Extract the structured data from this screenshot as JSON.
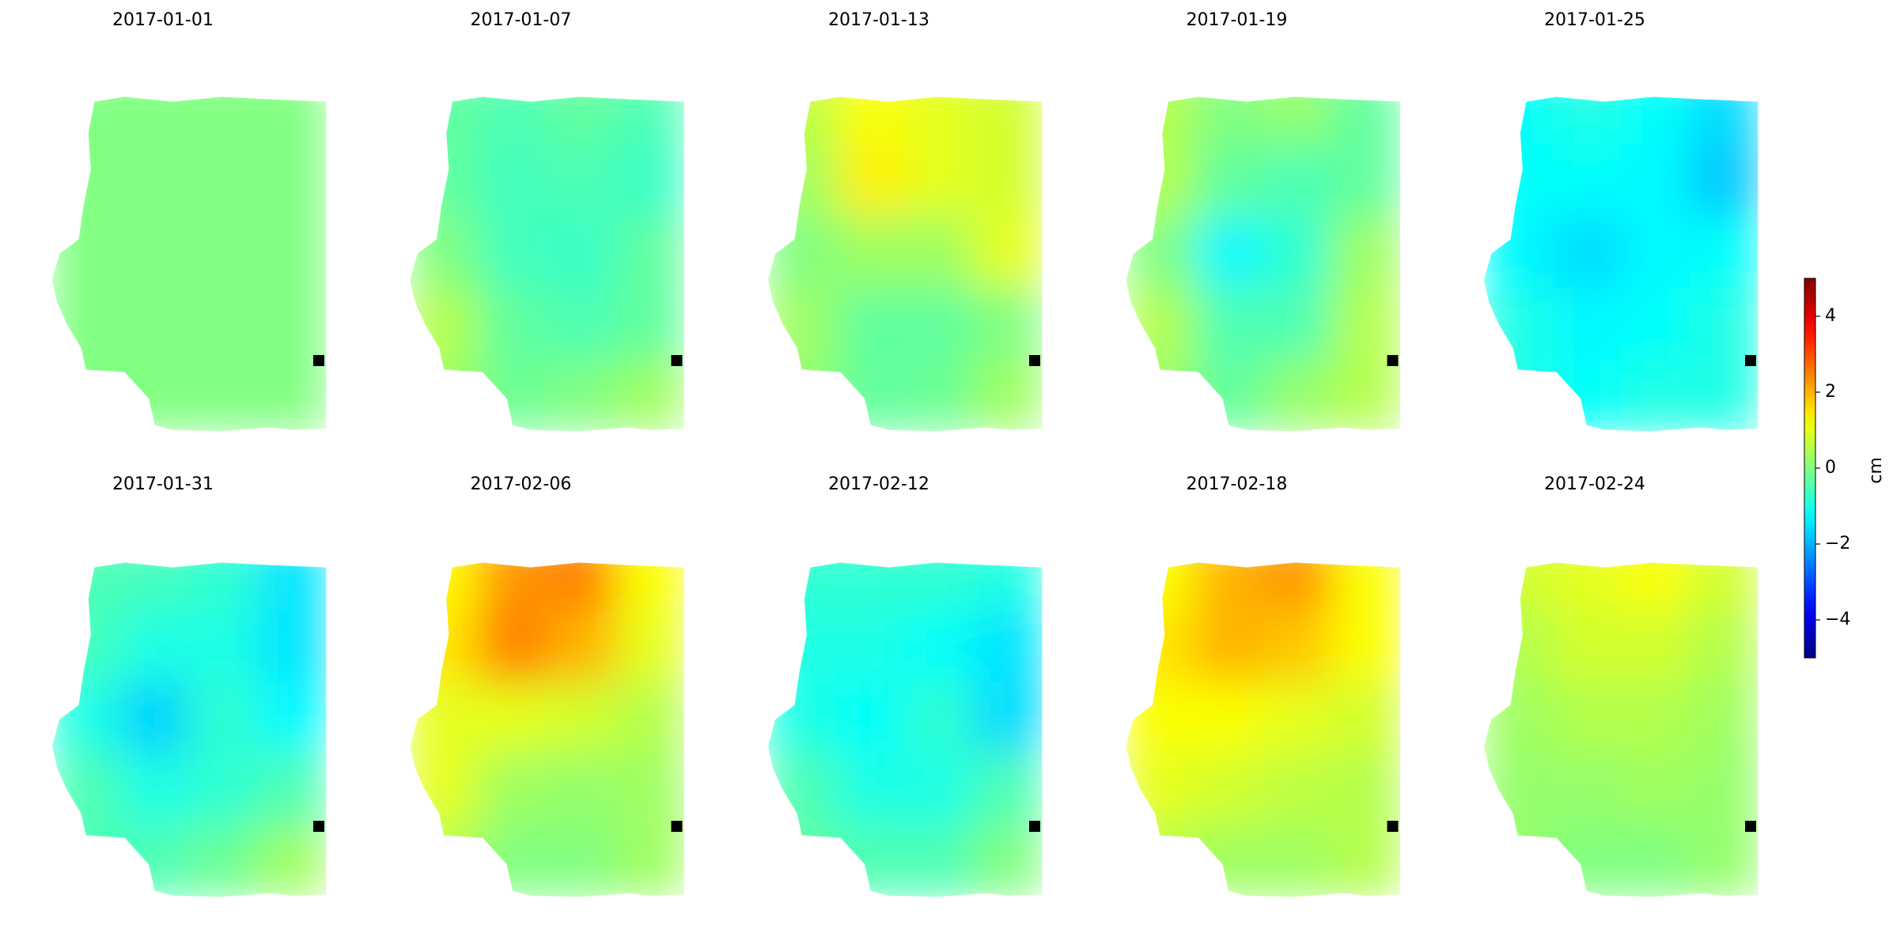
{
  "chart_data": {
    "type": "heatmap",
    "colormap": "jet",
    "clim": [
      -5,
      5
    ],
    "cticks": [
      {
        "value": -4,
        "label": "−4"
      },
      {
        "value": -2,
        "label": "−2"
      },
      0,
      2,
      4
    ],
    "colorbar_label": "cm",
    "panels": [
      {
        "title": "2017-01-01",
        "values": [
          [
            0,
            0,
            0,
            0
          ],
          [
            0,
            0,
            0,
            0
          ],
          [
            0,
            0,
            0,
            0
          ],
          [
            0,
            0,
            0,
            0
          ],
          [
            0,
            0,
            0,
            0
          ]
        ]
      },
      {
        "title": "2017-01-07",
        "values": [
          [
            -0.3,
            -0.5,
            -0.3,
            -0.5
          ],
          [
            -0.3,
            -0.6,
            -0.5,
            -0.7
          ],
          [
            0,
            -0.6,
            -0.7,
            -0.3
          ],
          [
            0.5,
            -0.3,
            -0.5,
            -0.3
          ],
          [
            0.3,
            -0.2,
            0,
            0.3
          ]
        ]
      },
      {
        "title": "2017-01-13",
        "values": [
          [
            0.6,
            1.2,
            1,
            0.8
          ],
          [
            0.3,
            1.4,
            1,
            0.8
          ],
          [
            0,
            0.3,
            0.3,
            1
          ],
          [
            0.3,
            -0.3,
            -0.3,
            0
          ],
          [
            0.2,
            -0.3,
            -0.2,
            0.3
          ]
        ]
      },
      {
        "title": "2017-01-19",
        "values": [
          [
            0.5,
            0,
            0.2,
            -0.3
          ],
          [
            0.5,
            -0.3,
            -0.5,
            -0.3
          ],
          [
            0,
            -1.3,
            -0.8,
            0.3
          ],
          [
            0.5,
            -0.5,
            -0.5,
            0.5
          ],
          [
            0.3,
            -0.3,
            0.2,
            0.5
          ]
        ]
      },
      {
        "title": "2017-01-25",
        "values": [
          [
            -1.2,
            -1,
            -1.2,
            -1.6
          ],
          [
            -1.2,
            -1.2,
            -1.3,
            -1.8
          ],
          [
            -1.3,
            -1.6,
            -1.3,
            -1.2
          ],
          [
            -1,
            -1.3,
            -1.2,
            -1
          ],
          [
            -1,
            -1.2,
            -1,
            -1
          ]
        ]
      },
      {
        "title": "2017-01-31",
        "values": [
          [
            -0.5,
            -0.6,
            -0.8,
            -1.5
          ],
          [
            -0.6,
            -1,
            -1,
            -1.5
          ],
          [
            -1,
            -1.7,
            -0.8,
            -1.3
          ],
          [
            -0.5,
            -1,
            -0.8,
            -0.5
          ],
          [
            -0.5,
            -0.5,
            -0.2,
            0.3
          ]
        ]
      },
      {
        "title": "2017-02-06",
        "values": [
          [
            1.3,
            2.3,
            2.5,
            1.2
          ],
          [
            1.5,
            2.5,
            2,
            1
          ],
          [
            1,
            1,
            0.8,
            0.5
          ],
          [
            1,
            0.3,
            0.2,
            0.3
          ],
          [
            0.5,
            0,
            0,
            0.3
          ]
        ]
      },
      {
        "title": "2017-02-12",
        "values": [
          [
            -0.8,
            -0.8,
            -0.8,
            -1
          ],
          [
            -1,
            -1,
            -1.2,
            -1.5
          ],
          [
            -1,
            -1.2,
            -0.8,
            -1.6
          ],
          [
            -0.5,
            -1,
            -1,
            -0.5
          ],
          [
            -0.3,
            -0.5,
            -0.5,
            0
          ]
        ]
      },
      {
        "title": "2017-02-18",
        "values": [
          [
            1.2,
            2,
            2.3,
            1.2
          ],
          [
            1.5,
            2,
            1.8,
            1.2
          ],
          [
            1.2,
            1.2,
            1,
            0.8
          ],
          [
            1,
            0.8,
            0.6,
            0.5
          ],
          [
            0.5,
            0.3,
            0.3,
            0.5
          ]
        ]
      },
      {
        "title": "2017-02-24",
        "values": [
          [
            0.8,
            1,
            1.2,
            0.8
          ],
          [
            0.5,
            0.8,
            0.8,
            0.5
          ],
          [
            0.3,
            0.5,
            0.5,
            0.3
          ],
          [
            0.2,
            0.2,
            0.3,
            0.2
          ],
          [
            0.2,
            0,
            0,
            0.2
          ]
        ]
      }
    ]
  }
}
